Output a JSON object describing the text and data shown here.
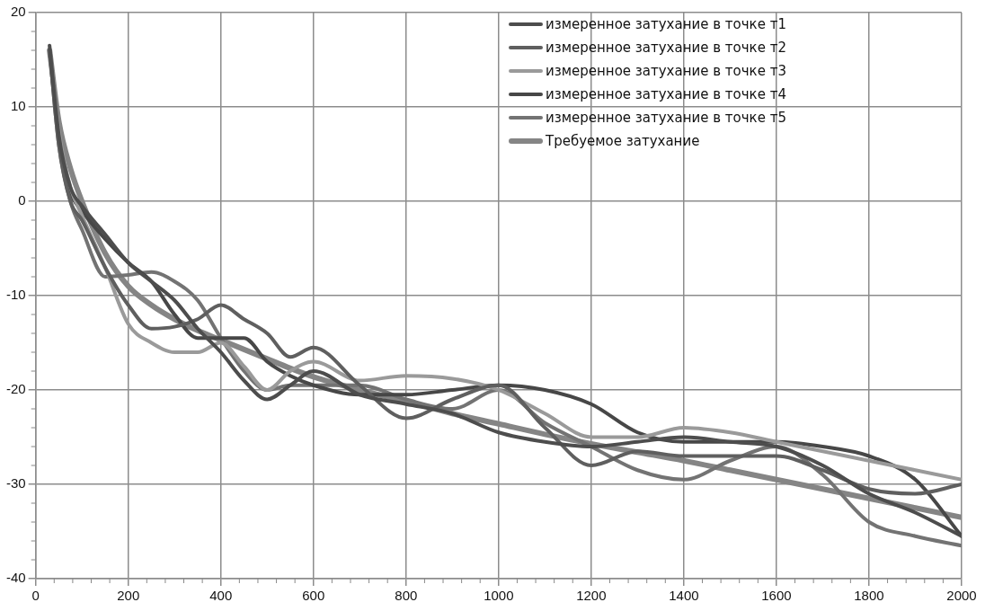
{
  "chart_data": {
    "type": "line",
    "x": [
      30,
      50,
      75,
      100,
      150,
      200,
      250,
      300,
      350,
      400,
      450,
      500,
      550,
      600,
      700,
      800,
      900,
      1000,
      1100,
      1200,
      1300,
      1400,
      1500,
      1600,
      1700,
      1800,
      1900,
      2000
    ],
    "xlim": [
      0,
      2000
    ],
    "xticks": [
      0,
      200,
      400,
      600,
      800,
      1000,
      1200,
      1400,
      1600,
      1800,
      2000
    ],
    "ylim": [
      -40,
      20
    ],
    "yticks": [
      -40,
      -30,
      -20,
      -10,
      0,
      10,
      20
    ],
    "grid": true,
    "legend": "top right",
    "marker": "none",
    "line_style": "solid",
    "series": [
      {
        "name": "измеренное затухание в точке т1",
        "color": "#4d4d4d",
        "values": [
          16.5,
          7,
          1.5,
          -0.5,
          -3.5,
          -6.5,
          -8.5,
          -10.5,
          -13.5,
          -16,
          -19,
          -21,
          -19.5,
          -18,
          -20.5,
          -21.5,
          -22.5,
          -24.5,
          -25.5,
          -26,
          -25.5,
          -25,
          -25.5,
          -26,
          -28,
          -31,
          -33,
          -35.5
        ]
      },
      {
        "name": "измеренное затухание в точке т2",
        "color": "#5f5f5f",
        "values": [
          16,
          6,
          0,
          -2,
          -7,
          -11,
          -13.5,
          -13.3,
          -12.5,
          -11,
          -12.5,
          -14,
          -16.5,
          -15.5,
          -19.5,
          -23,
          -21,
          -19.5,
          -24,
          -28,
          -26.5,
          -27,
          -27,
          -27,
          -28.5,
          -30.5,
          -31,
          -30
        ]
      },
      {
        "name": "измеренное затухание в точке т3",
        "color": "#9a9a9a",
        "values": [
          16,
          7.5,
          1.5,
          -1.5,
          -7,
          -13,
          -15,
          -16,
          -16,
          -15,
          -17.5,
          -20,
          -18,
          -17,
          -19,
          -18.5,
          -18.8,
          -20,
          -22.5,
          -25,
          -25,
          -24,
          -24.5,
          -25.5,
          -26.5,
          -27.5,
          -28.5,
          -29.5
        ]
      },
      {
        "name": "измеренное затухание в точке т4",
        "color": "#474747",
        "values": [
          16,
          7,
          1,
          -1,
          -4,
          -6.5,
          -8.5,
          -12,
          -14.5,
          -14.5,
          -14.5,
          -17,
          -18.5,
          -19.5,
          -20.5,
          -20.5,
          -20,
          -19.5,
          -20,
          -21.5,
          -24.5,
          -25.5,
          -25.5,
          -25.5,
          -26,
          -27,
          -29.5,
          -35.5
        ]
      },
      {
        "name": "измеренное затухание в точке т5",
        "color": "#737373",
        "values": [
          16,
          6,
          0,
          -3,
          -8,
          -7.8,
          -7.5,
          -8.5,
          -10.5,
          -14.5,
          -18,
          -20,
          -19.5,
          -19.5,
          -19.5,
          -21,
          -22,
          -20,
          -23.5,
          -26,
          -28.5,
          -29.5,
          -27.5,
          -26,
          -29,
          -34,
          -35.5,
          -36.5
        ]
      },
      {
        "name": "Требуемое затухание",
        "color": "#858585",
        "values": [
          16,
          8.5,
          3.5,
          0,
          -5.5,
          -9,
          -11,
          -12.5,
          -13.7,
          -14.7,
          -15.7,
          -16.7,
          -17.7,
          -18.6,
          -20,
          -21.2,
          -22.5,
          -23.6,
          -24.7,
          -25.7,
          -26.6,
          -27.5,
          -28.5,
          -29.5,
          -30.5,
          -31.5,
          -32.5,
          -33.5
        ]
      }
    ]
  }
}
